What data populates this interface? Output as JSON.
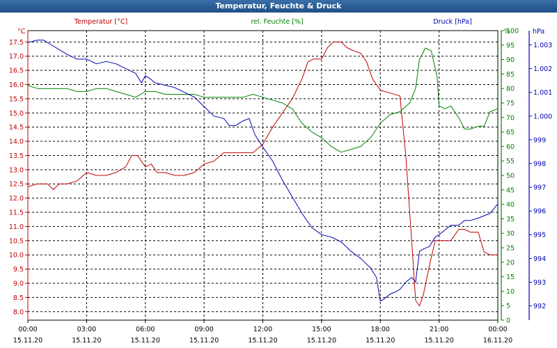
{
  "window": {
    "title": "Temperatur, Feuchte & Druck"
  },
  "chart_data": {
    "type": "line",
    "title": "Temperatur, Feuchte & Druck",
    "colors": {
      "temperature": "#c00000",
      "humidity": "#008000",
      "pressure": "#0000b0",
      "grid": "#000000"
    },
    "x_axis": {
      "range": [
        0,
        24
      ],
      "tick_times": [
        "00:00",
        "03:00",
        "06:00",
        "09:00",
        "12:00",
        "15:00",
        "18:00",
        "21:00",
        "00:00"
      ],
      "tick_dates": [
        "15.11.20",
        "15.11.20",
        "15.11.20",
        "15.11.20",
        "15.11.20",
        "15.11.20",
        "15.11.20",
        "15.11.20",
        "16.11.20"
      ]
    },
    "axes": {
      "temperature": {
        "label": "Temperatur [°C]",
        "unit": "°C",
        "range": [
          7.7,
          17.9
        ],
        "ticks": [
          "8.0",
          "8.5",
          "9.0",
          "9.5",
          "10.0",
          "10.5",
          "11.0",
          "11.5",
          "12.0",
          "12.5",
          "13.0",
          "13.5",
          "14.0",
          "14.5",
          "15.0",
          "15.5",
          "16.0",
          "16.5",
          "17.0",
          "17.5"
        ]
      },
      "humidity": {
        "label": "rel. Feuchte [%]",
        "unit": "%",
        "range": [
          0,
          100
        ],
        "ticks": [
          "0",
          "5",
          "10",
          "15",
          "20",
          "25",
          "30",
          "35",
          "40",
          "45",
          "50",
          "55",
          "60",
          "65",
          "70",
          "75",
          "80",
          "85",
          "90",
          "95",
          "100"
        ]
      },
      "pressure": {
        "label": "Druck [hPa]",
        "unit": "hPa",
        "range": [
          991.4,
          1003.6
        ],
        "ticks": [
          "992",
          "993",
          "994",
          "995",
          "996",
          "997",
          "998",
          "999",
          "1.000",
          "1.001",
          "1.002",
          "1.003"
        ]
      }
    },
    "series": [
      {
        "name": "Temperatur [°C]",
        "axis": "temperature",
        "x": [
          0,
          0.5,
          1,
          1.3,
          1.6,
          2,
          2.5,
          3,
          3.5,
          4,
          4.5,
          5,
          5.3,
          5.6,
          6,
          6.3,
          6.6,
          7,
          7.5,
          8,
          8.5,
          9,
          9.5,
          10,
          10.5,
          11,
          11.5,
          12,
          12.5,
          13,
          13.5,
          14,
          14.3,
          14.6,
          15,
          15.3,
          15.6,
          16,
          16.3,
          16.6,
          17,
          17.3,
          17.6,
          18,
          18.5,
          19,
          19.3,
          19.6,
          19.8,
          20,
          20.2,
          20.5,
          20.8,
          21,
          21.3,
          21.6,
          22,
          22.3,
          22.6,
          23,
          23.3,
          23.6,
          24
        ],
        "values": [
          12.4,
          12.5,
          12.5,
          12.3,
          12.5,
          12.5,
          12.6,
          12.9,
          12.8,
          12.8,
          12.9,
          13.1,
          13.5,
          13.5,
          13.1,
          13.2,
          12.9,
          12.9,
          12.8,
          12.8,
          12.9,
          13.2,
          13.3,
          13.6,
          13.6,
          13.6,
          13.6,
          13.9,
          14.5,
          15.0,
          15.5,
          16.2,
          16.8,
          16.9,
          16.9,
          17.3,
          17.5,
          17.5,
          17.3,
          17.2,
          17.1,
          16.8,
          16.2,
          15.8,
          15.7,
          15.6,
          13.5,
          10.5,
          8.4,
          8.2,
          8.6,
          9.6,
          10.5,
          10.5,
          10.5,
          10.5,
          10.9,
          10.9,
          10.8,
          10.8,
          10.1,
          10.0,
          10.0
        ]
      },
      {
        "name": "rel. Feuchte [%]",
        "axis": "humidity",
        "x": [
          0,
          0.5,
          1,
          1.5,
          2,
          2.5,
          3,
          3.5,
          4,
          4.5,
          5,
          5.5,
          6,
          6.5,
          7,
          7.5,
          8,
          8.5,
          9,
          9.5,
          10,
          10.5,
          11,
          11.5,
          12,
          12.5,
          13,
          13.5,
          14,
          14.5,
          15,
          15.5,
          16,
          16.5,
          17,
          17.5,
          18,
          18.5,
          19,
          19.5,
          19.8,
          20,
          20.3,
          20.6,
          20.9,
          21,
          21.3,
          21.6,
          22,
          22.3,
          22.6,
          23,
          23.3,
          23.6,
          24
        ],
        "values": [
          81,
          80,
          80,
          80,
          80,
          79,
          79,
          80,
          80,
          79,
          78,
          77,
          79,
          79,
          78,
          78,
          78,
          78,
          77,
          77,
          77,
          77,
          77,
          78,
          77,
          76,
          75,
          73,
          68,
          65,
          63,
          60,
          58,
          59,
          60,
          63,
          68,
          71,
          72,
          75,
          80,
          90,
          94,
          93,
          84,
          74,
          73,
          74,
          70,
          66,
          66,
          67,
          67,
          72,
          73
        ]
      },
      {
        "name": "Druck [hPa]",
        "axis": "pressure",
        "x": [
          0,
          0.5,
          0.8,
          1.2,
          1.6,
          2,
          2.5,
          3,
          3.5,
          4,
          4.5,
          5,
          5.5,
          5.8,
          6,
          6.2,
          6.5,
          7,
          7.5,
          8,
          8.5,
          9,
          9.5,
          10,
          10.3,
          10.6,
          11,
          11.3,
          11.6,
          12,
          12.5,
          13,
          13.5,
          14,
          14.5,
          15,
          15.5,
          16,
          16.5,
          17,
          17.5,
          17.8,
          18,
          18.2,
          18.5,
          18.8,
          19,
          19.3,
          19.6,
          19.8,
          20,
          20.2,
          20.5,
          20.8,
          21,
          21.3,
          21.6,
          22,
          22.3,
          22.6,
          23,
          23.3,
          23.6,
          24
        ],
        "values": [
          1003.1,
          1003.2,
          1003.2,
          1003.0,
          1002.8,
          1002.6,
          1002.4,
          1002.4,
          1002.2,
          1002.3,
          1002.2,
          1002.0,
          1001.8,
          1001.4,
          1001.7,
          1001.6,
          1001.4,
          1001.3,
          1001.2,
          1001.0,
          1000.8,
          1000.4,
          1000.0,
          999.9,
          999.6,
          999.6,
          999.8,
          999.9,
          999.2,
          998.7,
          998.1,
          997.3,
          996.6,
          995.9,
          995.3,
          995.0,
          994.9,
          994.7,
          994.3,
          994.0,
          993.6,
          993.2,
          992.2,
          992.3,
          992.5,
          992.6,
          992.7,
          993.0,
          993.2,
          993.0,
          994.3,
          994.4,
          994.5,
          994.9,
          995.0,
          995.2,
          995.4,
          995.4,
          995.6,
          995.6,
          995.7,
          995.8,
          995.9,
          996.3
        ]
      }
    ]
  }
}
